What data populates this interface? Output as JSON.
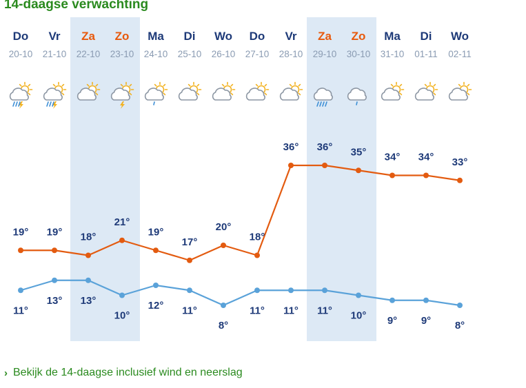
{
  "header": {
    "title": "14-daagse verwachting"
  },
  "colors": {
    "weekend_bg": "#dde9f5",
    "weekend_text": "#e8590c",
    "weekday_text": "#1e3a78",
    "date_text": "#8a9bb2",
    "max_line": "#e35b10",
    "min_line": "#5aa2d9",
    "label": "#1e3a78"
  },
  "chart_data": {
    "type": "line",
    "days": [
      {
        "day": "Do",
        "date": "20-10",
        "weekend": false,
        "icon": "sun-cloud-thunder-rain-icon"
      },
      {
        "day": "Vr",
        "date": "21-10",
        "weekend": false,
        "icon": "sun-cloud-thunder-rain-icon"
      },
      {
        "day": "Za",
        "date": "22-10",
        "weekend": true,
        "icon": "sun-cloud-icon"
      },
      {
        "day": "Zo",
        "date": "23-10",
        "weekend": true,
        "icon": "sun-cloud-thunder-icon"
      },
      {
        "day": "Ma",
        "date": "24-10",
        "weekend": false,
        "icon": "sun-cloud-drizzle-icon"
      },
      {
        "day": "Di",
        "date": "25-10",
        "weekend": false,
        "icon": "sun-cloud-icon"
      },
      {
        "day": "Wo",
        "date": "26-10",
        "weekend": false,
        "icon": "sun-cloud-icon"
      },
      {
        "day": "Do",
        "date": "27-10",
        "weekend": false,
        "icon": "sun-cloud-icon"
      },
      {
        "day": "Vr",
        "date": "28-10",
        "weekend": false,
        "icon": "sun-cloud-icon"
      },
      {
        "day": "Za",
        "date": "29-10",
        "weekend": true,
        "icon": "cloud-heavy-rain-icon"
      },
      {
        "day": "Zo",
        "date": "30-10",
        "weekend": true,
        "icon": "cloud-drizzle-icon"
      },
      {
        "day": "Ma",
        "date": "31-10",
        "weekend": false,
        "icon": "sun-cloud-icon"
      },
      {
        "day": "Di",
        "date": "01-11",
        "weekend": false,
        "icon": "sun-cloud-icon"
      },
      {
        "day": "Wo",
        "date": "02-11",
        "weekend": false,
        "icon": "sun-cloud-icon"
      }
    ],
    "series": [
      {
        "name": "max",
        "values": [
          19,
          19,
          18,
          21,
          19,
          17,
          20,
          18,
          36,
          36,
          35,
          34,
          34,
          33
        ]
      },
      {
        "name": "min",
        "values": [
          11,
          13,
          13,
          10,
          12,
          11,
          8,
          11,
          11,
          11,
          10,
          9,
          9,
          8
        ]
      }
    ],
    "unit": "°"
  },
  "footer": {
    "link": "Bekijk de 14-daagse inclusief wind en neerslag"
  }
}
